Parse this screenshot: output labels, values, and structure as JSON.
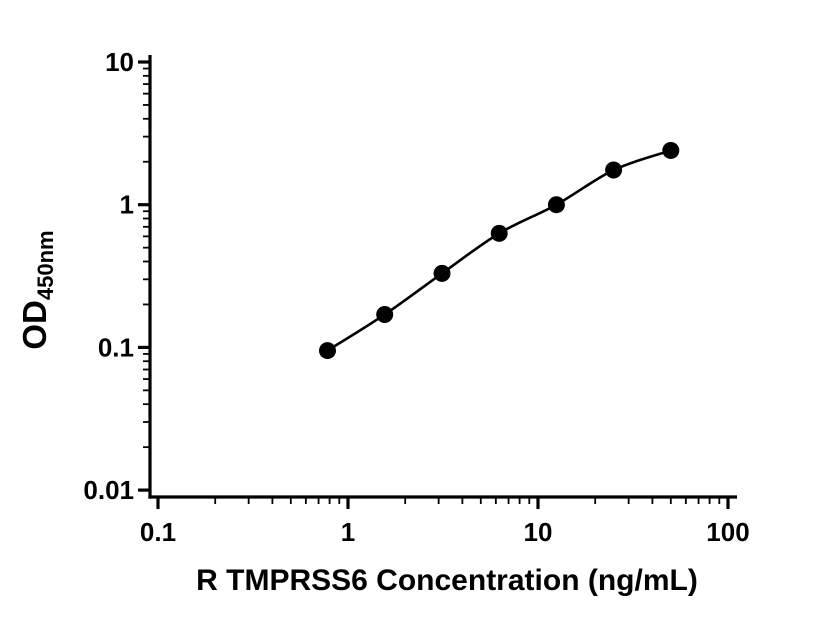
{
  "chart_data": {
    "type": "scatter",
    "title": "",
    "xlabel": "R TMPRSS6 Concentration (ng/mL)",
    "ylabel_main": "OD",
    "ylabel_sub": "450nm",
    "x_scale": "log",
    "y_scale": "log",
    "xlim": [
      0.1,
      100
    ],
    "ylim": [
      0.01,
      10
    ],
    "x_tick_values": [
      0.1,
      1,
      10,
      100
    ],
    "x_tick_labels": [
      "0.1",
      "1",
      "10",
      "100"
    ],
    "y_tick_values": [
      10,
      1,
      0.1,
      0.01
    ],
    "y_tick_labels": [
      "10",
      "1",
      "0.1",
      "0.01"
    ],
    "x": [
      0.78,
      1.56,
      3.125,
      6.25,
      12.5,
      25,
      50
    ],
    "y": [
      0.095,
      0.17,
      0.33,
      0.63,
      1.0,
      1.75,
      2.4
    ],
    "grid": false,
    "legend": "none",
    "line_color": "#000000",
    "point_color": "#000000",
    "marker": "circle"
  }
}
